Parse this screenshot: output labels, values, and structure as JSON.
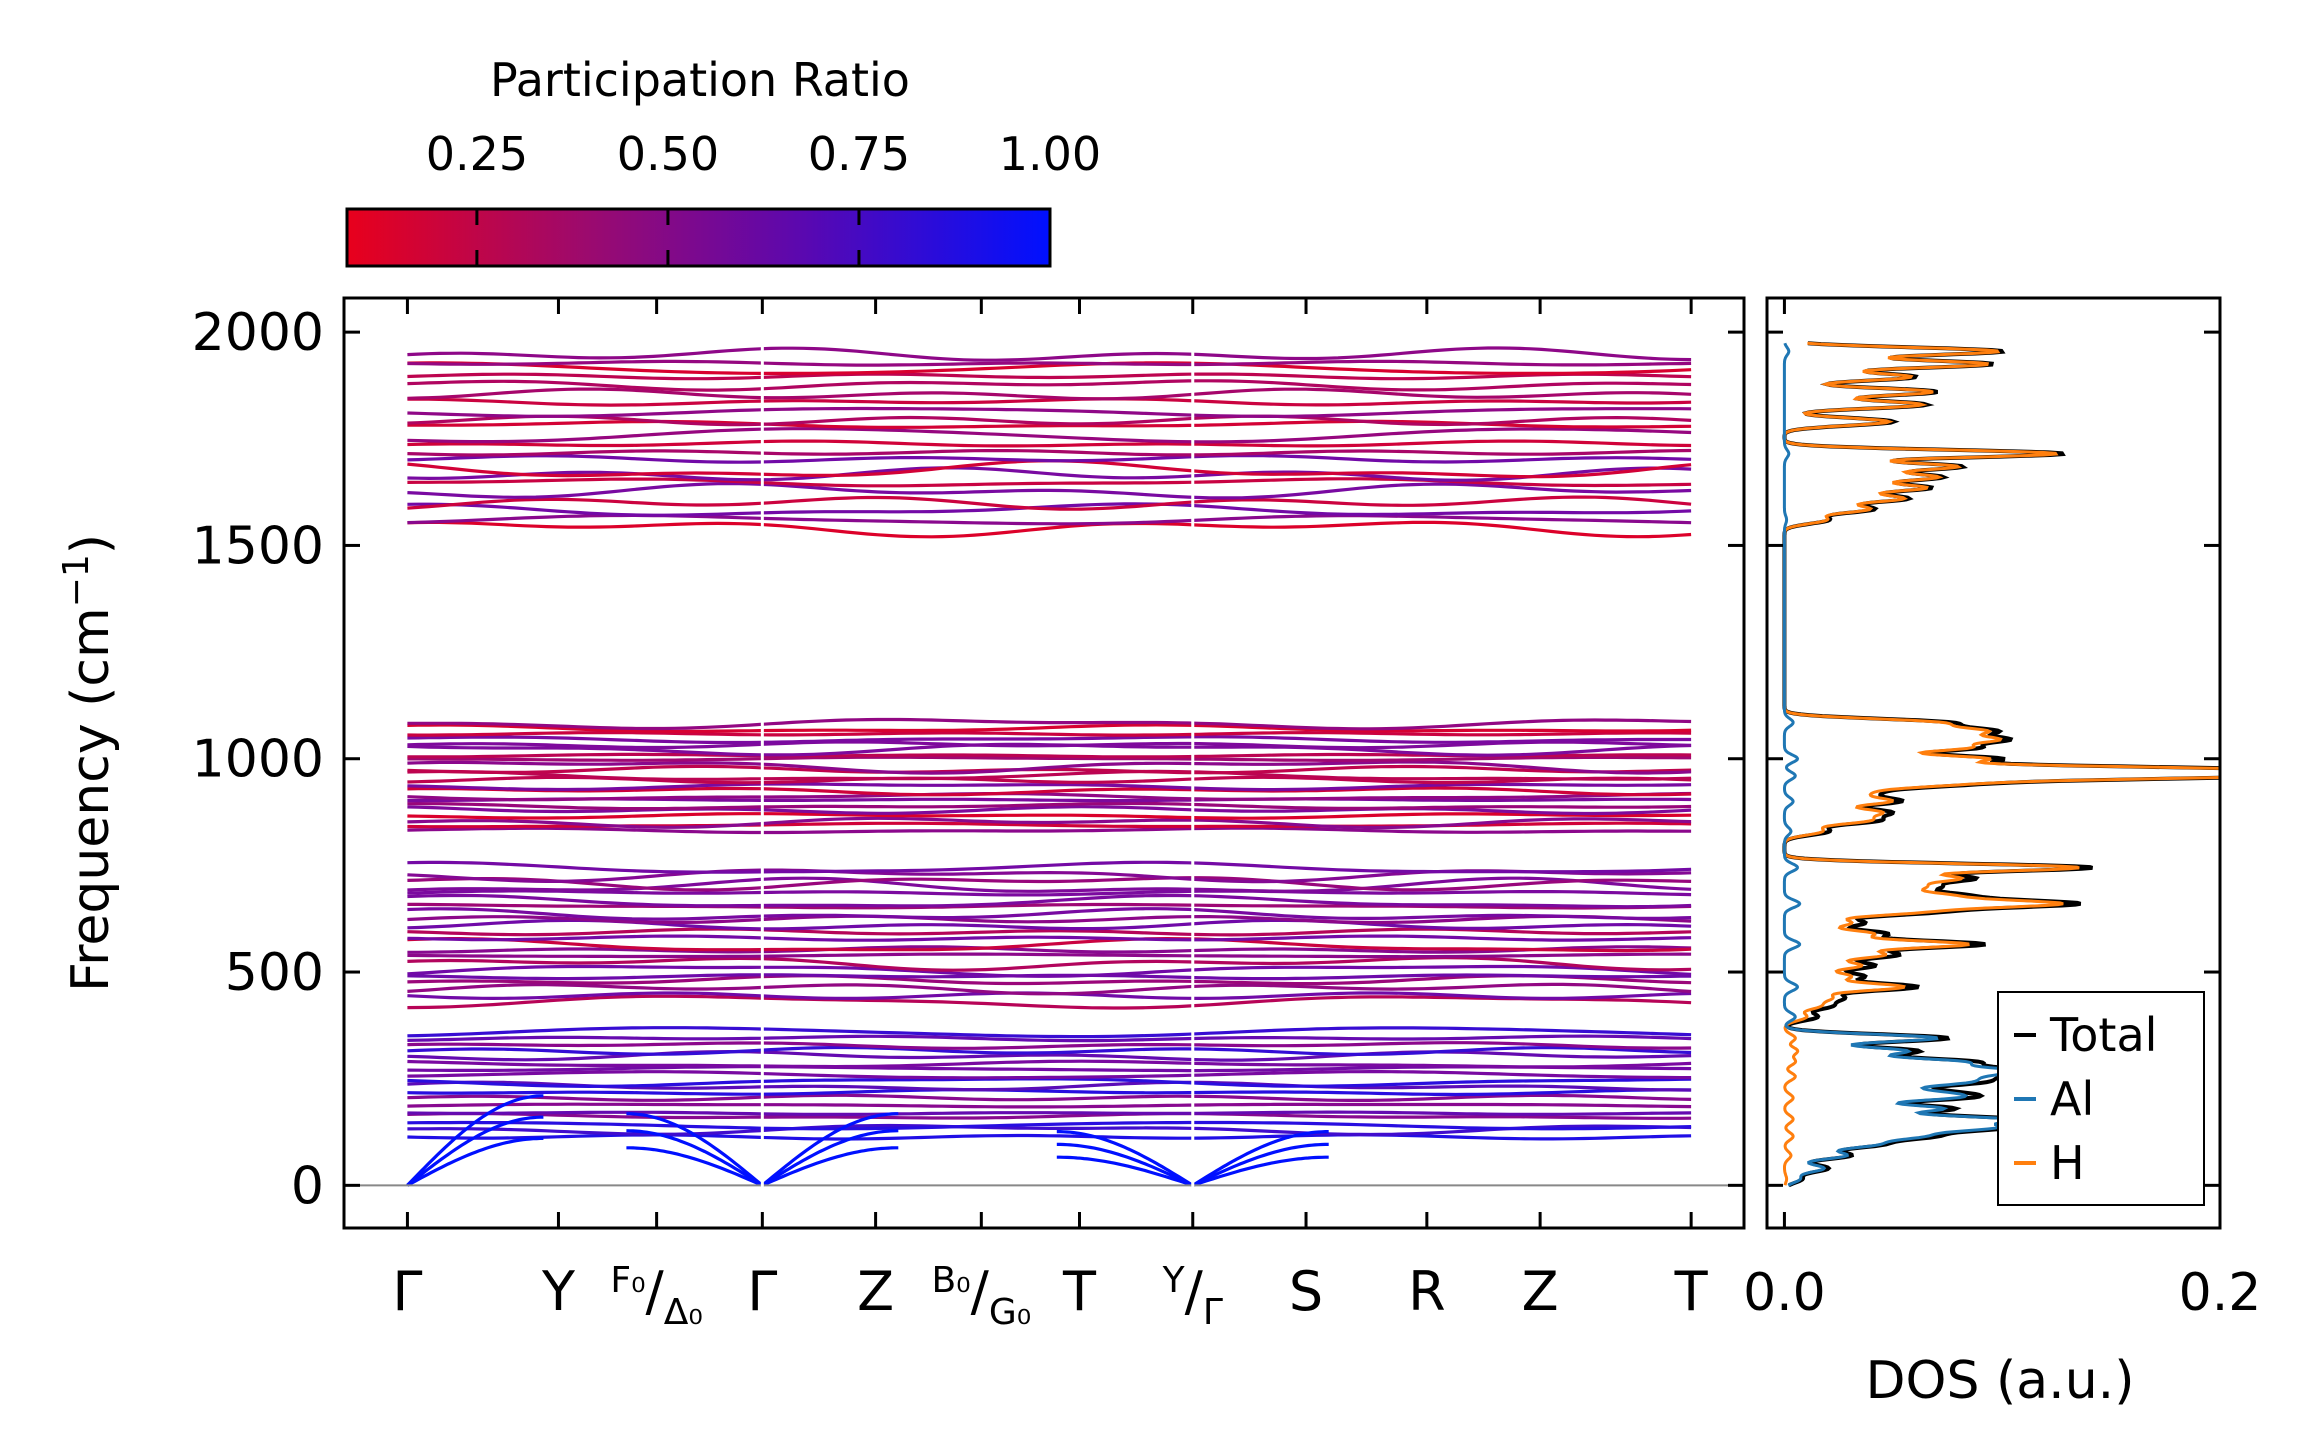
{
  "chart_data": [
    {
      "type": "line",
      "name": "phonon-band-structure",
      "ylabel": "Frequency (cm⁻¹)",
      "ylabel_base": "Frequency (cm",
      "ylabel_exp": "−1",
      "ylabel_close": ")",
      "ylim": [
        -100,
        2080
      ],
      "yticks": [
        0,
        500,
        1000,
        1500,
        2000
      ],
      "ytick_labels": [
        "0",
        "500",
        "1000",
        "1500",
        "2000"
      ],
      "path_x": [
        0,
        1,
        1.65,
        2.35,
        3.1,
        3.8,
        4.45,
        5.2,
        5.95,
        6.75,
        7.5,
        8.5
      ],
      "xlim": [
        -0.42,
        8.85
      ],
      "high_symmetry_points": [
        {
          "x": 0,
          "label": "Γ"
        },
        {
          "x": 1,
          "label": "Y"
        },
        {
          "x": 1.65,
          "label": "",
          "top": "F₀",
          "slash": "/",
          "bottom": "Δ₀"
        },
        {
          "x": 2.35,
          "label": "Γ"
        },
        {
          "x": 3.1,
          "label": "Z"
        },
        {
          "x": 3.8,
          "label": "",
          "top": "B₀",
          "slash": "/",
          "bottom": "G₀"
        },
        {
          "x": 4.45,
          "label": "T"
        },
        {
          "x": 5.2,
          "label": "",
          "top": "Y",
          "slash": "/",
          "bottom": "Γ"
        },
        {
          "x": 5.95,
          "label": "S"
        },
        {
          "x": 6.75,
          "label": "R"
        },
        {
          "x": 7.5,
          "label": "Z"
        },
        {
          "x": 8.5,
          "label": "T"
        }
      ],
      "segment_breaks": [
        2.35,
        5.2
      ],
      "band_groups": [
        {
          "range": [
            1540,
            1965
          ],
          "count": 22,
          "mean_pr": 0.35
        },
        {
          "range": [
            825,
            1090
          ],
          "count": 22,
          "mean_pr": 0.35
        },
        {
          "range": [
            430,
            750
          ],
          "count": 22,
          "mean_pr": 0.42
        },
        {
          "range": [
            110,
            370
          ],
          "count": 18,
          "mean_pr": 0.68
        }
      ],
      "acoustic_branches": {
        "gamma_points": [
          0,
          2.35,
          5.2
        ],
        "max_freq": [
          200,
          160,
          120
        ],
        "pr": 1.0
      },
      "colorbar": {
        "label": "Participation Ratio",
        "ticks": [
          0.25,
          0.5,
          0.75,
          1.0
        ],
        "tick_labels": [
          "0.25",
          "0.50",
          "0.75",
          "1.00"
        ],
        "range": [
          0.08,
          1.0
        ],
        "low_color": "#e8001c",
        "mid_color": "#7a0aa0",
        "high_color": "#0010ff"
      }
    },
    {
      "type": "line",
      "name": "density-of-states",
      "xlabel": "DOS (a.u.)",
      "xlim": [
        -0.008,
        0.2
      ],
      "xticks": [
        0.0,
        0.2
      ],
      "xtick_labels": [
        "0.0",
        "0.2"
      ],
      "ylim": [
        -100,
        2080
      ],
      "series": [
        {
          "name": "Total",
          "color": "#000000",
          "peaks": [
            [
              1955,
              0.1
            ],
            [
              1925,
              0.095
            ],
            [
              1895,
              0.06
            ],
            [
              1860,
              0.07
            ],
            [
              1830,
              0.065
            ],
            [
              1790,
              0.05
            ],
            [
              1715,
              0.128
            ],
            [
              1685,
              0.08
            ],
            [
              1660,
              0.07
            ],
            [
              1635,
              0.065
            ],
            [
              1610,
              0.055
            ],
            [
              1585,
              0.04
            ],
            [
              1560,
              0.02
            ],
            [
              1085,
              0.07
            ],
            [
              1065,
              0.085
            ],
            [
              1045,
              0.09
            ],
            [
              1025,
              0.08
            ],
            [
              1000,
              0.095
            ],
            [
              975,
              0.18
            ],
            [
              960,
              0.19
            ],
            [
              940,
              0.07
            ],
            [
              920,
              0.035
            ],
            [
              900,
              0.05
            ],
            [
              875,
              0.045
            ],
            [
              855,
              0.04
            ],
            [
              830,
              0.02
            ],
            [
              745,
              0.14
            ],
            [
              720,
              0.08
            ],
            [
              700,
              0.06
            ],
            [
              680,
              0.07
            ],
            [
              660,
              0.125
            ],
            [
              640,
              0.06
            ],
            [
              615,
              0.035
            ],
            [
              590,
              0.045
            ],
            [
              565,
              0.09
            ],
            [
              540,
              0.05
            ],
            [
              515,
              0.04
            ],
            [
              490,
              0.035
            ],
            [
              465,
              0.06
            ],
            [
              440,
              0.025
            ],
            [
              420,
              0.02
            ],
            [
              395,
              0.015
            ],
            [
              345,
              0.075
            ],
            [
              315,
              0.06
            ],
            [
              290,
              0.08
            ],
            [
              270,
              0.09
            ],
            [
              255,
              0.06
            ],
            [
              240,
              0.07
            ],
            [
              220,
              0.055
            ],
            [
              205,
              0.07
            ],
            [
              180,
              0.075
            ],
            [
              155,
              0.1
            ],
            [
              135,
              0.09
            ],
            [
              115,
              0.06
            ],
            [
              95,
              0.04
            ],
            [
              70,
              0.03
            ],
            [
              40,
              0.02
            ],
            [
              15,
              0.008
            ]
          ]
        },
        {
          "name": "Al",
          "color": "#1f77b4",
          "peaks": [
            [
              1955,
              0.002
            ],
            [
              1715,
              0.002
            ],
            [
              1560,
              0.001
            ],
            [
              1085,
              0.004
            ],
            [
              1000,
              0.006
            ],
            [
              960,
              0.005
            ],
            [
              900,
              0.004
            ],
            [
              830,
              0.003
            ],
            [
              745,
              0.006
            ],
            [
              660,
              0.007
            ],
            [
              565,
              0.007
            ],
            [
              465,
              0.006
            ],
            [
              395,
              0.005
            ],
            [
              345,
              0.07
            ],
            [
              315,
              0.055
            ],
            [
              290,
              0.075
            ],
            [
              270,
              0.085
            ],
            [
              255,
              0.055
            ],
            [
              240,
              0.065
            ],
            [
              220,
              0.05
            ],
            [
              205,
              0.065
            ],
            [
              180,
              0.07
            ],
            [
              155,
              0.095
            ],
            [
              135,
              0.085
            ],
            [
              115,
              0.055
            ],
            [
              95,
              0.038
            ],
            [
              70,
              0.028
            ],
            [
              40,
              0.018
            ],
            [
              15,
              0.007
            ]
          ]
        },
        {
          "name": "H",
          "color": "#ff7f0e",
          "peaks": [
            [
              1955,
              0.098
            ],
            [
              1925,
              0.093
            ],
            [
              1895,
              0.058
            ],
            [
              1860,
              0.068
            ],
            [
              1830,
              0.063
            ],
            [
              1790,
              0.048
            ],
            [
              1715,
              0.125
            ],
            [
              1685,
              0.078
            ],
            [
              1660,
              0.068
            ],
            [
              1635,
              0.063
            ],
            [
              1610,
              0.053
            ],
            [
              1585,
              0.038
            ],
            [
              1560,
              0.019
            ],
            [
              1085,
              0.066
            ],
            [
              1065,
              0.081
            ],
            [
              1045,
              0.086
            ],
            [
              1025,
              0.076
            ],
            [
              1000,
              0.089
            ],
            [
              975,
              0.174
            ],
            [
              960,
              0.185
            ],
            [
              940,
              0.066
            ],
            [
              920,
              0.031
            ],
            [
              900,
              0.046
            ],
            [
              875,
              0.041
            ],
            [
              855,
              0.036
            ],
            [
              830,
              0.017
            ],
            [
              745,
              0.134
            ],
            [
              720,
              0.074
            ],
            [
              700,
              0.054
            ],
            [
              680,
              0.064
            ],
            [
              660,
              0.118
            ],
            [
              640,
              0.054
            ],
            [
              615,
              0.029
            ],
            [
              590,
              0.039
            ],
            [
              565,
              0.083
            ],
            [
              540,
              0.044
            ],
            [
              515,
              0.034
            ],
            [
              490,
              0.029
            ],
            [
              465,
              0.054
            ],
            [
              440,
              0.02
            ],
            [
              420,
              0.015
            ],
            [
              395,
              0.01
            ],
            [
              345,
              0.005
            ],
            [
              315,
              0.006
            ],
            [
              290,
              0.005
            ],
            [
              255,
              0.005
            ],
            [
              205,
              0.004
            ],
            [
              155,
              0.004
            ],
            [
              115,
              0.004
            ],
            [
              70,
              0.003
            ],
            [
              15,
              0.001
            ]
          ]
        }
      ],
      "legend": {
        "position": "lower-right",
        "entries": [
          "Total",
          "Al",
          "H"
        ]
      }
    }
  ]
}
